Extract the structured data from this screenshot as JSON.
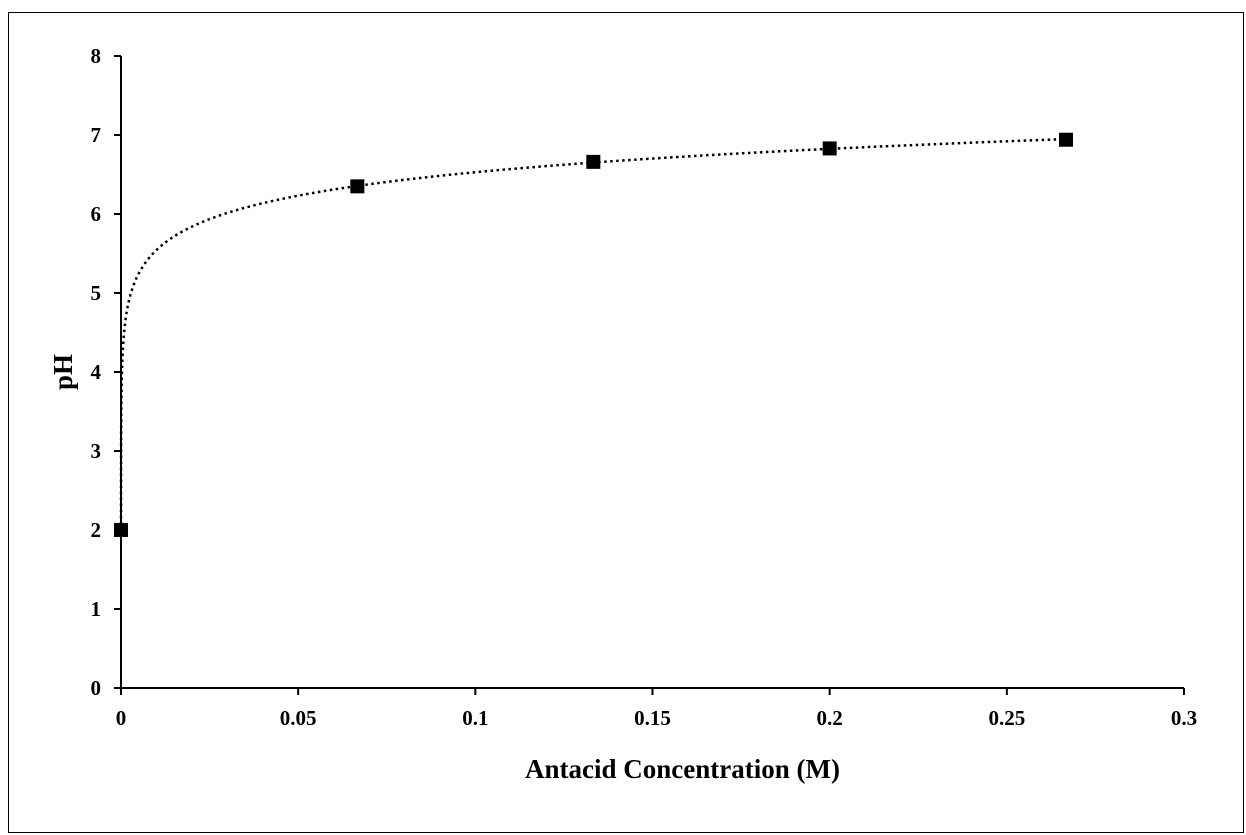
{
  "chart_data": {
    "type": "scatter",
    "title": "",
    "xlabel": "Antacid Concentration (M)",
    "ylabel": "pH",
    "xlim": [
      0,
      0.3
    ],
    "ylim": [
      0,
      8
    ],
    "x_ticks": [
      "0",
      "0.05",
      "0.1",
      "0.15",
      "0.2",
      "0.25",
      "0.3"
    ],
    "y_ticks": [
      "0",
      "1",
      "2",
      "3",
      "4",
      "5",
      "6",
      "7",
      "8"
    ],
    "grid": false,
    "legend": "none",
    "series": [
      {
        "x": [
          0,
          0.0667,
          0.1333,
          0.2,
          0.2667
        ],
        "y": [
          2.0,
          6.35,
          6.66,
          6.83,
          6.94
        ],
        "marker": "square",
        "color": "#000000"
      }
    ],
    "trendline": {
      "style": "dotted",
      "fit": "logarithmic",
      "color": "#000000"
    }
  }
}
